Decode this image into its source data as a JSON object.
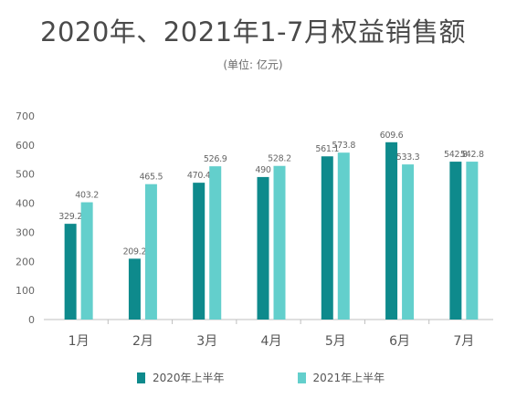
{
  "chart_data": {
    "type": "bar",
    "title": "2020年、2021年1-7月权益销售额",
    "subtitle": "(单位: 亿元)",
    "categories": [
      "1月",
      "2月",
      "3月",
      "4月",
      "5月",
      "6月",
      "7月"
    ],
    "series": [
      {
        "name": "2020年上半年",
        "color": "#0e8a8c",
        "values": [
          329.2,
          209.2,
          470.4,
          490,
          561.1,
          609.6,
          542.8
        ],
        "labels": [
          "329.2",
          "209.2",
          "470.4",
          "490",
          "561.1",
          "609.6",
          "542.8"
        ]
      },
      {
        "name": "2021年上半年",
        "color": "#63cfcc",
        "values": [
          403.2,
          465.5,
          526.9,
          528.2,
          573.8,
          533.3,
          542.8
        ],
        "labels": [
          "403.2",
          "465.5",
          "526.9",
          "528.2",
          "573.8",
          "533.3",
          "542.8"
        ]
      }
    ],
    "yticks": [
      "0",
      "100",
      "200",
      "300",
      "400",
      "500",
      "600",
      "700"
    ],
    "ylim": [
      0,
      700
    ],
    "grid": false,
    "legend_position": "bottom"
  }
}
